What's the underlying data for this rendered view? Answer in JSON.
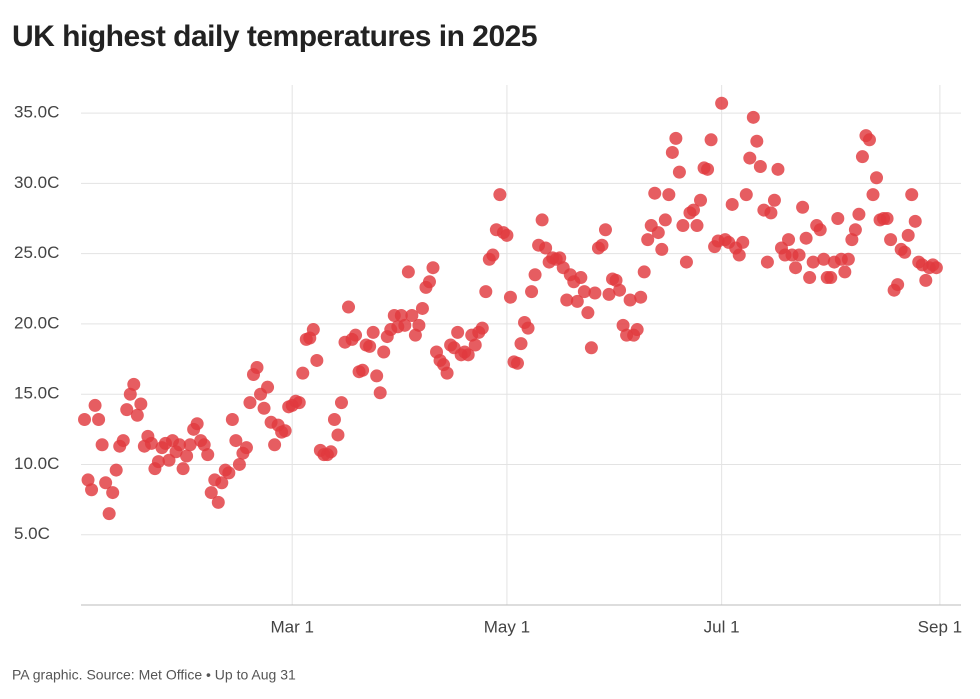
{
  "chart_data": {
    "type": "scatter",
    "title": "UK highest daily temperatures in 2025",
    "footnote": "PA graphic. Source: Met Office • Up to Aug 31",
    "color": "#e0393e",
    "grid": true,
    "xlim": [
      0,
      250
    ],
    "ylim": [
      0,
      37
    ],
    "xticks": [
      {
        "value": 60,
        "label": "Mar 1"
      },
      {
        "value": 121,
        "label": "May 1"
      },
      {
        "value": 182,
        "label": "Jul 1"
      },
      {
        "value": 244,
        "label": "Sep 1"
      }
    ],
    "yticks": [
      {
        "value": 5,
        "label": "5.0C"
      },
      {
        "value": 10,
        "label": "10.0C"
      },
      {
        "value": 15,
        "label": "15.0C"
      },
      {
        "value": 20,
        "label": "20.0C"
      },
      {
        "value": 25,
        "label": "25.0C"
      },
      {
        "value": 30,
        "label": "30.0C"
      },
      {
        "value": 35,
        "label": "35.0C"
      }
    ],
    "x": [
      1,
      2,
      3,
      4,
      5,
      6,
      7,
      8,
      9,
      10,
      11,
      12,
      13,
      14,
      15,
      16,
      17,
      18,
      19,
      20,
      21,
      22,
      23,
      24,
      25,
      26,
      27,
      28,
      29,
      30,
      31,
      32,
      33,
      34,
      35,
      36,
      37,
      38,
      39,
      40,
      41,
      42,
      43,
      44,
      45,
      46,
      47,
      48,
      49,
      50,
      51,
      52,
      53,
      54,
      55,
      56,
      57,
      58,
      59,
      60,
      61,
      62,
      63,
      64,
      65,
      66,
      67,
      68,
      69,
      70,
      71,
      72,
      73,
      74,
      75,
      76,
      77,
      78,
      79,
      80,
      81,
      82,
      83,
      84,
      85,
      86,
      87,
      88,
      89,
      90,
      91,
      92,
      93,
      94,
      95,
      96,
      97,
      98,
      99,
      100,
      101,
      102,
      103,
      104,
      105,
      106,
      107,
      108,
      109,
      110,
      111,
      112,
      113,
      114,
      115,
      116,
      117,
      118,
      119,
      120,
      121,
      122,
      123,
      124,
      125,
      126,
      127,
      128,
      129,
      130,
      131,
      132,
      133,
      134,
      135,
      136,
      137,
      138,
      139,
      140,
      141,
      142,
      143,
      144,
      145,
      146,
      147,
      148,
      149,
      150,
      151,
      152,
      153,
      154,
      155,
      156,
      157,
      158,
      159,
      160,
      161,
      162,
      163,
      164,
      165,
      166,
      167,
      168,
      169,
      170,
      171,
      172,
      173,
      174,
      175,
      176,
      177,
      178,
      179,
      180,
      181,
      182,
      183,
      184,
      185,
      186,
      187,
      188,
      189,
      190,
      191,
      192,
      193,
      194,
      195,
      196,
      197,
      198,
      199,
      200,
      201,
      202,
      203,
      204,
      205,
      206,
      207,
      208,
      209,
      210,
      211,
      212,
      213,
      214,
      215,
      216,
      217,
      218,
      219,
      220,
      221,
      222,
      223,
      224,
      225,
      226,
      227,
      228,
      229,
      230,
      231,
      232,
      233,
      234,
      235,
      236,
      237,
      238,
      239,
      240,
      241,
      242,
      243
    ],
    "values": [
      13.2,
      8.9,
      8.2,
      14.2,
      13.2,
      11.4,
      8.7,
      6.5,
      8.0,
      9.6,
      11.3,
      11.7,
      13.9,
      15.0,
      15.7,
      13.5,
      14.3,
      11.3,
      12.0,
      11.5,
      9.7,
      10.2,
      11.2,
      11.5,
      10.3,
      11.7,
      10.9,
      11.4,
      9.7,
      10.6,
      11.4,
      12.5,
      12.9,
      11.7,
      11.4,
      10.7,
      8.0,
      8.9,
      7.3,
      8.7,
      9.6,
      9.4,
      13.2,
      11.7,
      10.0,
      10.8,
      11.2,
      14.4,
      16.4,
      16.9,
      15.0,
      14.0,
      15.5,
      13.0,
      11.4,
      12.8,
      12.3,
      12.4,
      14.1,
      14.2,
      14.5,
      14.4,
      16.5,
      18.9,
      19.0,
      19.6,
      17.4,
      11.0,
      10.7,
      10.7,
      10.9,
      13.2,
      12.1,
      14.4,
      18.7,
      21.2,
      18.9,
      19.2,
      16.6,
      16.7,
      18.5,
      18.4,
      19.4,
      16.3,
      15.1,
      18.0,
      19.1,
      19.6,
      20.6,
      19.8,
      20.6,
      19.9,
      23.7,
      20.6,
      19.2,
      19.9,
      21.1,
      22.6,
      23.0,
      24.0,
      18.0,
      17.4,
      17.1,
      16.5,
      18.5,
      18.3,
      19.4,
      17.8,
      18.0,
      17.8,
      19.2,
      18.5,
      19.4,
      19.7,
      22.3,
      24.6,
      24.9,
      26.7,
      29.2,
      26.5,
      26.3,
      21.9,
      17.3,
      17.2,
      18.6,
      20.1,
      19.7,
      22.3,
      23.5,
      25.6,
      27.4,
      25.4,
      24.4,
      24.7,
      24.6,
      24.7,
      24.0,
      21.7,
      23.5,
      23.0,
      21.6,
      23.3,
      22.3,
      20.8,
      18.3,
      22.2,
      25.4,
      25.6,
      26.7,
      22.1,
      23.2,
      23.1,
      22.4,
      19.9,
      19.2,
      21.7,
      19.2,
      19.6,
      21.9,
      23.7,
      26.0,
      27.0,
      29.3,
      26.5,
      25.3,
      27.4,
      29.2,
      32.2,
      33.2,
      30.8,
      27.0,
      24.4,
      27.9,
      28.1,
      27.0,
      28.8,
      31.1,
      31.0,
      33.1,
      25.5,
      25.9,
      35.7,
      26.0,
      25.8,
      28.5,
      25.4,
      24.9,
      25.8,
      29.2,
      31.8,
      34.7,
      33.0,
      31.2,
      28.1,
      24.4,
      27.9,
      28.8,
      31.0,
      25.4,
      24.9,
      26.0,
      24.9,
      24.0,
      24.9,
      28.3,
      26.1,
      23.3,
      24.4,
      27.0,
      26.7,
      24.6,
      23.3,
      23.3,
      24.4,
      27.5,
      24.6,
      23.7,
      24.6,
      26.0,
      26.7,
      27.8,
      31.9,
      33.4,
      33.1,
      29.2,
      30.4,
      27.4,
      27.5,
      27.5,
      26.0,
      22.4,
      22.8,
      25.3,
      25.1,
      26.3,
      29.2,
      27.3,
      24.4,
      24.2,
      23.1,
      24.0,
      24.2,
      24.0
    ]
  }
}
